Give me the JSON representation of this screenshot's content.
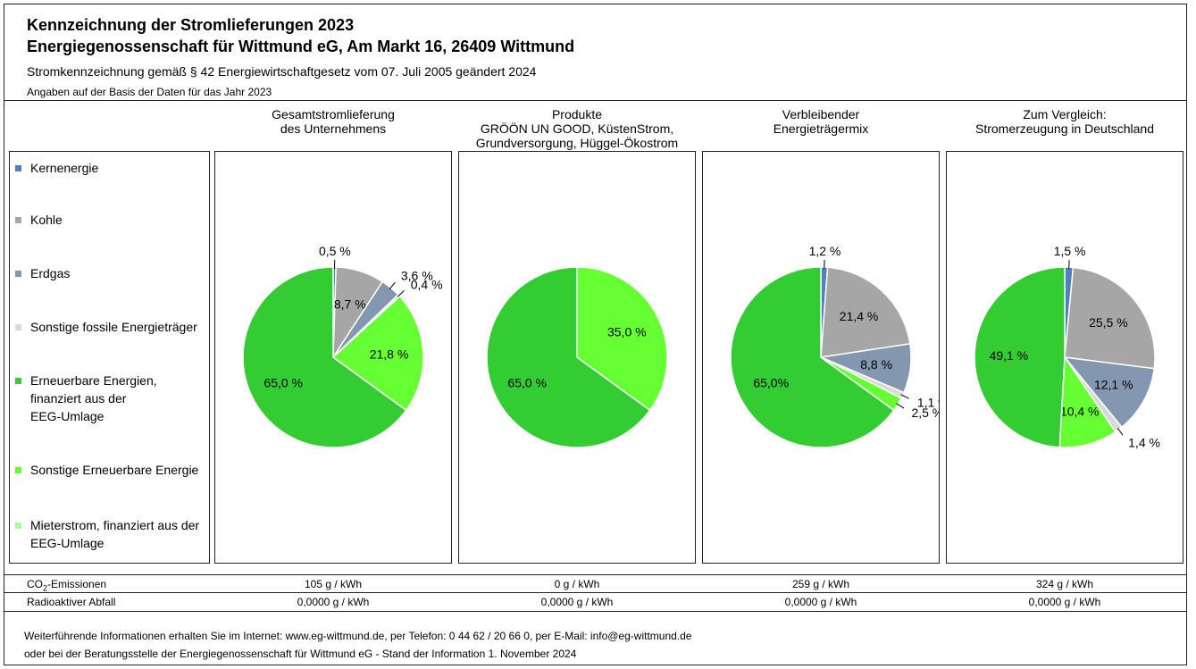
{
  "header": {
    "title_line1": "Kennzeichnung der Stromlieferungen 2023",
    "title_line2": "Energiegenossenschaft für Wittmund eG, Am Markt 16, 26409 Wittmund",
    "subtitle": "Stromkennzeichnung gemäß § 42 Energiewirtschaftgesetz vom 07. Juli 2005 geändert 2024",
    "basis_note": "Angaben auf der Basis der Daten für das Jahr 2023"
  },
  "legend": [
    {
      "label": "Kernenergie",
      "color": "#4F81BD"
    },
    {
      "label": "Kohle",
      "color": "#A6A6A6"
    },
    {
      "label": "Erdgas",
      "color": "#8497B0"
    },
    {
      "label": "Sonstige fossile Energieträger",
      "color": "#D9D9D9"
    },
    {
      "label": "Erneuerbare Energien,\nfinanziert aus der\nEEG-Umlage",
      "color": "#33CC33"
    },
    {
      "label": "Sonstige Erneuerbare Energie",
      "color": "#66FF33"
    },
    {
      "label": "Mieterstrom, finanziert aus der\nEEG-Umlage",
      "color": "#B3F5A8"
    }
  ],
  "chart_data": [
    {
      "type": "pie",
      "title": "Gesamtstromlieferung\ndes Unternehmens",
      "slices": [
        {
          "category": "Kernenergie",
          "value": 0.5,
          "label": "0,5 %"
        },
        {
          "category": "Kohle",
          "value": 8.7,
          "label": "8,7 %"
        },
        {
          "category": "Erdgas",
          "value": 3.6,
          "label": "3,6 %"
        },
        {
          "category": "Sonstige fossile Energieträger",
          "value": 0.4,
          "label": "0,4 %"
        },
        {
          "category": "Sonstige Erneuerbare Energie",
          "value": 21.8,
          "label": "21,8 %"
        },
        {
          "category": "Erneuerbare Energien, finanziert aus der EEG-Umlage",
          "value": 65.0,
          "label": "65,0 %"
        }
      ]
    },
    {
      "type": "pie",
      "title": "Produkte\nGRÖÖN UN GOOD, KüstenStrom,\nGrundversorgung, Hüggel-Ökostrom",
      "slices": [
        {
          "category": "Sonstige Erneuerbare Energie",
          "value": 35.0,
          "label": "35,0 %"
        },
        {
          "category": "Erneuerbare Energien, finanziert aus der EEG-Umlage",
          "value": 65.0,
          "label": "65,0 %"
        }
      ]
    },
    {
      "type": "pie",
      "title": "Verbleibender\nEnergieträgermix",
      "slices": [
        {
          "category": "Kernenergie",
          "value": 1.2,
          "label": "1,2 %"
        },
        {
          "category": "Kohle",
          "value": 21.4,
          "label": "21,4 %"
        },
        {
          "category": "Erdgas",
          "value": 8.8,
          "label": "8,8 %"
        },
        {
          "category": "Sonstige fossile Energieträger",
          "value": 1.1,
          "label": "1,1 %"
        },
        {
          "category": "Sonstige Erneuerbare Energie",
          "value": 2.5,
          "label": "2,5 %"
        },
        {
          "category": "Erneuerbare Energien, finanziert aus der EEG-Umlage",
          "value": 65.0,
          "label": "65,0%"
        }
      ]
    },
    {
      "type": "pie",
      "title": "Zum Vergleich:\nStromerzeugung in Deutschland",
      "slices": [
        {
          "category": "Kernenergie",
          "value": 1.5,
          "label": "1,5 %"
        },
        {
          "category": "Kohle",
          "value": 25.5,
          "label": "25,5 %"
        },
        {
          "category": "Erdgas",
          "value": 12.1,
          "label": "12,1 %"
        },
        {
          "category": "Sonstige fossile Energieträger",
          "value": 1.4,
          "label": "1,4 %"
        },
        {
          "category": "Sonstige Erneuerbare Energie",
          "value": 10.4,
          "label": "10,4 %"
        },
        {
          "category": "Erneuerbare Energien, finanziert aus der EEG-Umlage",
          "value": 49.1,
          "label": "49,1 %"
        }
      ]
    }
  ],
  "rows": {
    "co2_label_main": "CO",
    "co2_label_sub": "2",
    "co2_label_rest": "-Emissionen",
    "co2_values": [
      "105 g / kWh",
      "0 g / kWh",
      "259 g / kWh",
      "324 g / kWh"
    ],
    "waste_label": "Radioaktiver Abfall",
    "waste_values": [
      "0,0000 g / kWh",
      "0,0000 g / kWh",
      "0,0000 g / kWh",
      "0,0000 g / kWh"
    ]
  },
  "footer": {
    "line1": "Weiterführende Informationen erhalten Sie im Internet: www.eg-wittmund.de, per Telefon: 0 44 62 / 20 66 0, per E-Mail: info@eg-wittmund.de",
    "line2": "oder bei der Beratungsstelle der Energiegenossenschaft für Wittmund eG - Stand der Information 1. November 2024"
  }
}
